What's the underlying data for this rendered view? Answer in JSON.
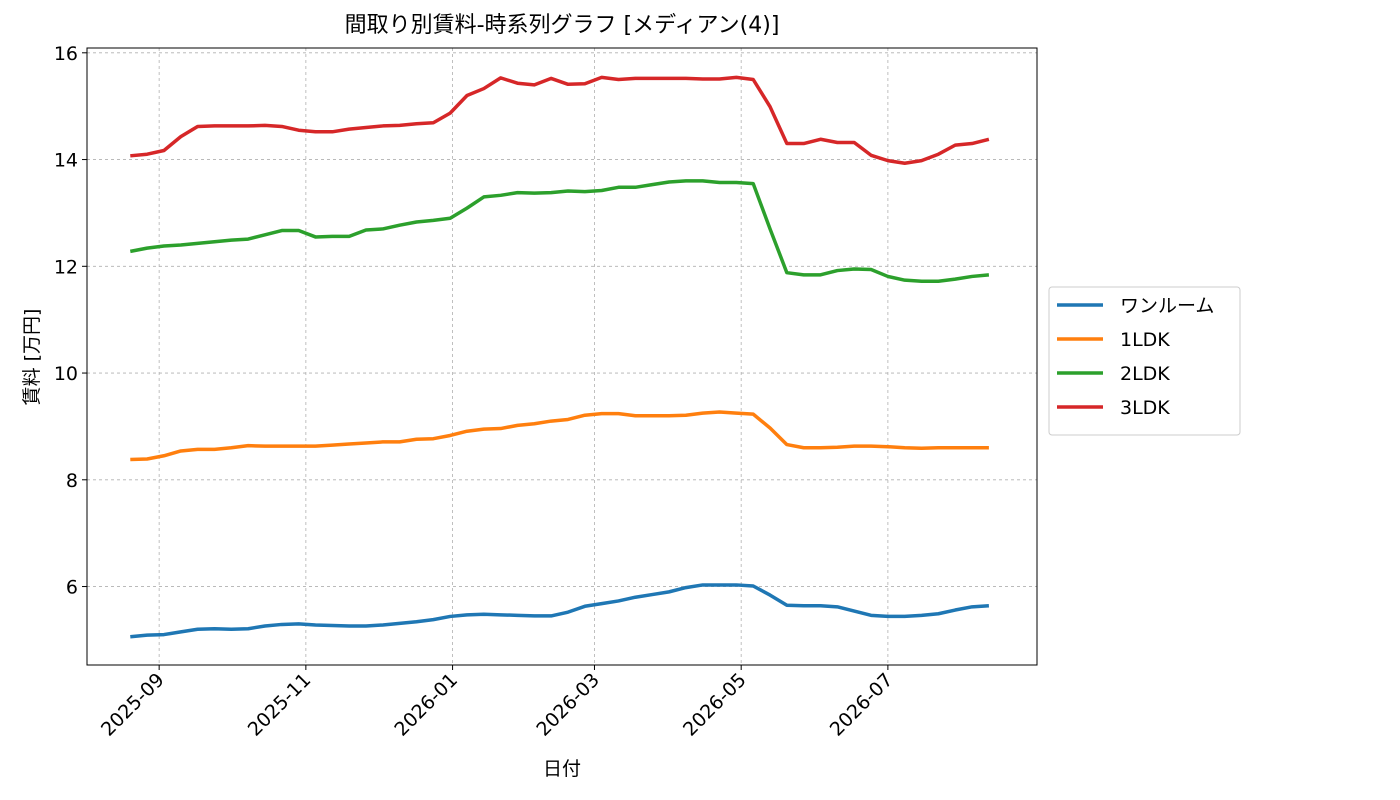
{
  "chart_data": {
    "type": "line",
    "title": "間取り別賃料-時系列グラフ [メディアン(4)]",
    "xlabel": "日付",
    "ylabel": "賃料 [万円]",
    "x": [
      "2025-08-20",
      "2025-08-27",
      "2025-09-03",
      "2025-09-10",
      "2025-09-17",
      "2025-09-24",
      "2025-10-01",
      "2025-10-08",
      "2025-10-15",
      "2025-10-22",
      "2025-10-29",
      "2025-11-05",
      "2025-11-12",
      "2025-11-19",
      "2025-11-26",
      "2025-12-03",
      "2025-12-10",
      "2025-12-17",
      "2025-12-24",
      "2025-12-31",
      "2026-01-07",
      "2026-01-14",
      "2026-01-21",
      "2026-01-28",
      "2026-02-04",
      "2026-02-11",
      "2026-02-18",
      "2026-02-25",
      "2026-03-04",
      "2026-03-11",
      "2026-03-18",
      "2026-03-25",
      "2026-04-01",
      "2026-04-08",
      "2026-04-15",
      "2026-04-22",
      "2026-04-29",
      "2026-05-06",
      "2026-05-13",
      "2026-05-20",
      "2026-05-27",
      "2026-06-03",
      "2026-06-10",
      "2026-06-17",
      "2026-06-24",
      "2026-07-01",
      "2026-07-08",
      "2026-07-15",
      "2026-07-22",
      "2026-07-29",
      "2026-08-05",
      "2026-08-12"
    ],
    "series": [
      {
        "name": "ワンルーム",
        "color": "#1f77b4",
        "values": [
          5.06,
          5.09,
          5.1,
          5.15,
          5.2,
          5.21,
          5.2,
          5.21,
          5.26,
          5.29,
          5.3,
          5.28,
          5.27,
          5.26,
          5.26,
          5.28,
          5.31,
          5.34,
          5.38,
          5.44,
          5.47,
          5.48,
          5.47,
          5.46,
          5.45,
          5.45,
          5.52,
          5.63,
          5.68,
          5.73,
          5.8,
          5.85,
          5.9,
          5.98,
          6.03,
          6.03,
          6.03,
          6.01,
          5.84,
          5.65,
          5.64,
          5.64,
          5.62,
          5.54,
          5.46,
          5.44,
          5.44,
          5.46,
          5.49,
          5.56,
          5.62,
          5.64
        ]
      },
      {
        "name": "1LDK",
        "color": "#ff7f0e",
        "values": [
          8.38,
          8.39,
          8.45,
          8.54,
          8.57,
          8.57,
          8.6,
          8.64,
          8.63,
          8.63,
          8.63,
          8.63,
          8.65,
          8.67,
          8.69,
          8.71,
          8.71,
          8.76,
          8.77,
          8.83,
          8.91,
          8.95,
          8.96,
          9.02,
          9.05,
          9.1,
          9.13,
          9.21,
          9.24,
          9.24,
          9.2,
          9.2,
          9.2,
          9.21,
          9.25,
          9.27,
          9.25,
          9.23,
          8.97,
          8.66,
          8.6,
          8.6,
          8.61,
          8.63,
          8.63,
          8.62,
          8.6,
          8.59,
          8.6,
          8.6,
          8.6,
          8.6
        ]
      },
      {
        "name": "2LDK",
        "color": "#2ca02c",
        "values": [
          12.28,
          12.34,
          12.38,
          12.4,
          12.43,
          12.46,
          12.49,
          12.51,
          12.59,
          12.67,
          12.67,
          12.55,
          12.56,
          12.56,
          12.68,
          12.7,
          12.77,
          12.83,
          12.86,
          12.9,
          13.09,
          13.3,
          13.33,
          13.38,
          13.37,
          13.38,
          13.41,
          13.4,
          13.42,
          13.48,
          13.48,
          13.53,
          13.58,
          13.6,
          13.6,
          13.57,
          13.57,
          13.55,
          12.7,
          11.88,
          11.84,
          11.84,
          11.92,
          11.95,
          11.94,
          11.81,
          11.74,
          11.72,
          11.72,
          11.76,
          11.81,
          11.84
        ]
      },
      {
        "name": "3LDK",
        "color": "#d62728",
        "values": [
          14.07,
          14.1,
          14.17,
          14.43,
          14.62,
          14.63,
          14.63,
          14.63,
          14.64,
          14.62,
          14.55,
          14.52,
          14.52,
          14.57,
          14.6,
          14.63,
          14.64,
          14.67,
          14.69,
          14.87,
          15.2,
          15.33,
          15.53,
          15.43,
          15.4,
          15.52,
          15.41,
          15.42,
          15.54,
          15.5,
          15.52,
          15.52,
          15.52,
          15.52,
          15.51,
          15.51,
          15.54,
          15.5,
          14.99,
          14.3,
          14.3,
          14.38,
          14.32,
          14.32,
          14.08,
          13.98,
          13.93,
          13.98,
          14.1,
          14.27,
          14.3,
          14.38
        ]
      }
    ],
    "xlim": [
      "2025-08-02",
      "2026-09-01"
    ],
    "xticks": [
      {
        "value": "2025-09-01",
        "label": "2025-09"
      },
      {
        "value": "2025-11-01",
        "label": "2025-11"
      },
      {
        "value": "2026-01-01",
        "label": "2026-01"
      },
      {
        "value": "2026-03-01",
        "label": "2026-03"
      },
      {
        "value": "2026-05-01",
        "label": "2026-05"
      },
      {
        "value": "2026-07-01",
        "label": "2026-07"
      }
    ],
    "ylim": [
      4.53,
      16.09
    ],
    "yticks": [
      6,
      8,
      10,
      12,
      14,
      16
    ],
    "grid": true,
    "legend": "right"
  }
}
